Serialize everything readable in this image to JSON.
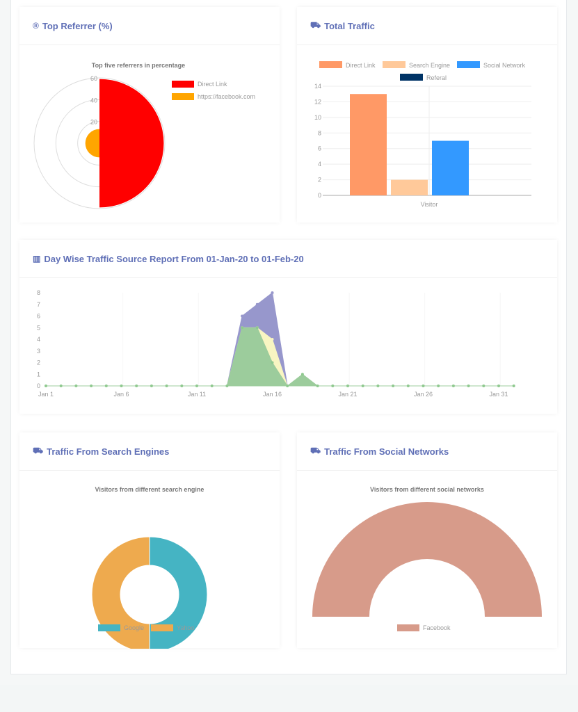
{
  "cards": {
    "top_referrer": {
      "title": "Top Referrer (%)",
      "icon": "registered-icon"
    },
    "total_traffic": {
      "title": "Total Traffic",
      "icon": "truck-icon"
    },
    "day_wise": {
      "title": "Day Wise Traffic Source Report From 01-Jan-20 to 01-Feb-20",
      "icon": "bar-chart-icon"
    },
    "search_engines": {
      "title": "Traffic From Search Engines",
      "icon": "truck-icon"
    },
    "social_networks": {
      "title": "Traffic From Social Networks",
      "icon": "truck-icon"
    }
  },
  "chart_data": [
    {
      "id": "referrer",
      "type": "polarArea",
      "title": "Top five referrers in percentage",
      "categories": [
        "Direct Link",
        "https://facebook.com"
      ],
      "values": [
        59,
        13
      ],
      "colors": [
        "#ff0000",
        "#ffa500"
      ],
      "rlim": [
        0,
        60
      ],
      "ticks": [
        "20",
        "40",
        "60"
      ],
      "legend": "right"
    },
    {
      "id": "total",
      "type": "bar",
      "categories": [
        "Visitor"
      ],
      "series": [
        {
          "name": "Direct Link",
          "values": [
            13
          ],
          "color": "#ff9966"
        },
        {
          "name": "Search Engine",
          "values": [
            2
          ],
          "color": "#ffc99a"
        },
        {
          "name": "Social Network",
          "values": [
            7
          ],
          "color": "#3399ff"
        },
        {
          "name": "Referal",
          "values": [
            0
          ],
          "color": "#003366"
        }
      ],
      "ylim": [
        0,
        14
      ],
      "yticks": [
        "0",
        "2",
        "4",
        "6",
        "8",
        "10",
        "12",
        "14"
      ],
      "grid": true,
      "legend": "top"
    },
    {
      "id": "daywise",
      "type": "area",
      "x_labels": [
        "Jan 1",
        "Jan 6",
        "Jan 11",
        "Jan 16",
        "Jan 21",
        "Jan 26",
        "Jan 31"
      ],
      "days": 32,
      "series": [
        {
          "color": "#9797cc",
          "values": [
            0,
            0,
            0,
            0,
            0,
            0,
            0,
            0,
            0,
            0,
            0,
            0,
            0,
            6,
            7,
            8,
            0,
            0,
            0,
            0,
            0,
            0,
            0,
            0,
            0,
            0,
            0,
            0,
            0,
            0,
            0,
            0
          ]
        },
        {
          "color": "#f8f5c2",
          "values": [
            0,
            0,
            0,
            0,
            0,
            0,
            0,
            0,
            0,
            0,
            0,
            0,
            0,
            5,
            5,
            4,
            0,
            0,
            0,
            0,
            0,
            0,
            0,
            0,
            0,
            0,
            0,
            0,
            0,
            0,
            0,
            0
          ]
        },
        {
          "color": "#9ccc9c",
          "values": [
            0,
            0,
            0,
            0,
            0,
            0,
            0,
            0,
            0,
            0,
            0,
            0,
            0,
            5,
            5,
            2,
            0,
            1,
            0,
            0,
            0,
            0,
            0,
            0,
            0,
            0,
            0,
            0,
            0,
            0,
            0,
            0
          ]
        }
      ],
      "ylim": [
        0,
        8
      ],
      "yticks": [
        "0",
        "1",
        "2",
        "3",
        "4",
        "5",
        "6",
        "7",
        "8"
      ]
    },
    {
      "id": "search",
      "type": "doughnut",
      "title": "Visitors from different search engine",
      "categories": [
        "Google",
        "Yahoo"
      ],
      "values": [
        1,
        1
      ],
      "colors": [
        "#45b4c3",
        "#eeaa4e"
      ],
      "legend": "bottom"
    },
    {
      "id": "social",
      "type": "half-doughnut",
      "title": "Visitors from different social networks",
      "categories": [
        "Facebook"
      ],
      "values": [
        1
      ],
      "colors": [
        "#d79b8a"
      ],
      "legend": "bottom"
    }
  ]
}
